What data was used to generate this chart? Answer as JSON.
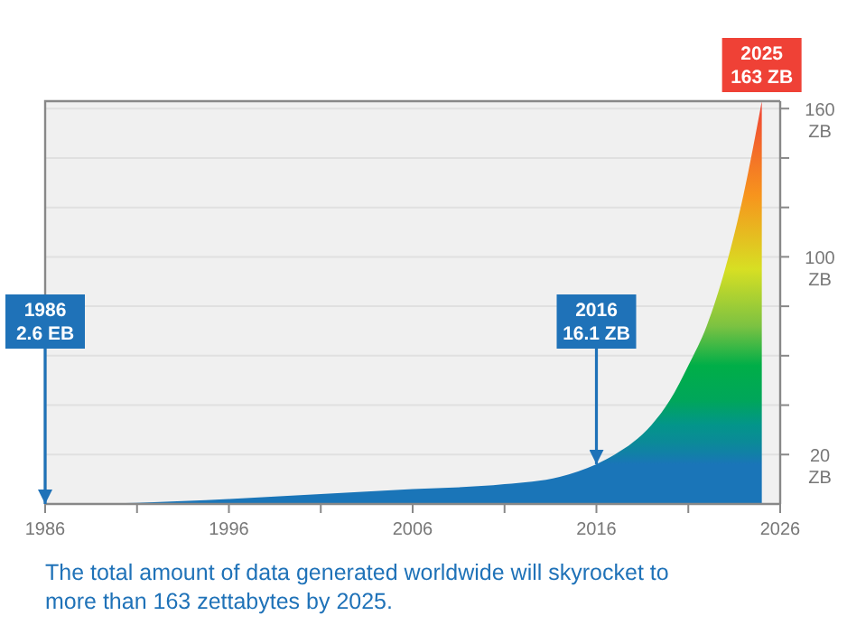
{
  "chart_data": {
    "type": "area",
    "x": [
      1986,
      1991,
      1996,
      2001,
      2006,
      2011,
      2014,
      2016,
      2017,
      2018,
      2019,
      2020,
      2021,
      2022,
      2023,
      2024,
      2025
    ],
    "series": [
      {
        "values": [
          0,
          0.5,
          2,
          4,
          6,
          8,
          11,
          16.1,
          20,
          25,
          32,
          42,
          56,
          72,
          95,
          125,
          163
        ],
        "colors": [
          "#1a75b8",
          "#1a75b8",
          "#1a75b8",
          "#1a75b8",
          "#1a75b8",
          "#1a75b8",
          "#1a75b8",
          "#1a75b8",
          "#127fa8",
          "#0b8a98",
          "#03958a",
          "#00a65a",
          "#00ae48",
          "#7cc242",
          "#d7df23",
          "#f7941d",
          "#ef4136"
        ]
      }
    ],
    "xlim": [
      1986,
      2026
    ],
    "xticks": [
      1986,
      {
        "value": 1991,
        "label": null
      },
      1996,
      {
        "value": 2001,
        "label": null
      },
      2006,
      {
        "value": 2011,
        "label": null
      },
      2016,
      {
        "value": 2021,
        "label": null
      },
      2026
    ],
    "ylim": [
      0,
      163
    ],
    "yticks": [
      {
        "value": 20,
        "label": "20 ZB"
      },
      {
        "value": 40,
        "label": null
      },
      {
        "value": 60,
        "label": null
      },
      {
        "value": 80,
        "label": null
      },
      {
        "value": 100,
        "label": "100 ZB"
      },
      {
        "value": 120,
        "label": null
      },
      {
        "value": 140,
        "label": null
      },
      {
        "value": 160,
        "label": "160 ZB"
      }
    ],
    "grid": "y",
    "annotations": [
      {
        "text": "1986 2.6 EB",
        "x": 1986,
        "y": 0
      },
      {
        "text": "2016 16.1 ZB",
        "x": 2016,
        "y": 16.1
      },
      {
        "text": "2025 163 ZB",
        "x": 2025,
        "y": 163
      },
      "The total amount of data generated worldwide will skyrocket to more than 163 zettabytes by 2025."
    ]
  }
}
